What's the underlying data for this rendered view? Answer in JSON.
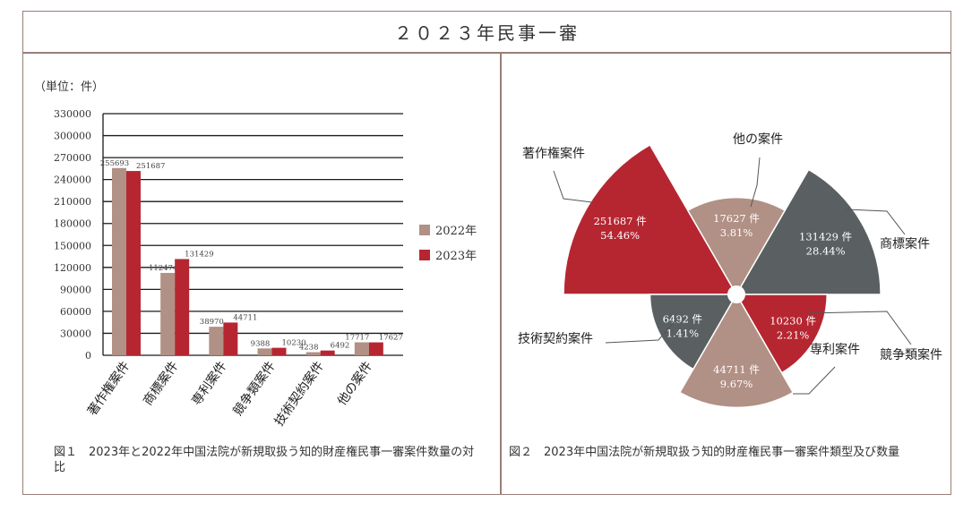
{
  "header": {
    "title": "２０２３年民事一審"
  },
  "chart_data": [
    {
      "type": "bar",
      "unit_label": "（単位：件）",
      "categories": [
        "著作権案件",
        "商標案件",
        "専利案件",
        "競争類案件",
        "技術契約案件",
        "他の案件"
      ],
      "series": [
        {
          "name": "2022年",
          "color": "#b19085",
          "values": [
            255693,
            112474,
            38970,
            9388,
            4238,
            17717
          ]
        },
        {
          "name": "2023年",
          "color": "#b62631",
          "values": [
            251687,
            131429,
            44711,
            10230,
            6492,
            17627
          ]
        }
      ],
      "ylim": [
        0,
        330000
      ],
      "yticks": [
        "0",
        "30000",
        "60000",
        "90000",
        "120000",
        "150000",
        "180000",
        "210000",
        "240000",
        "270000",
        "300000",
        "330000"
      ],
      "grid": true,
      "legend_position": "right",
      "caption": "図１　2023年と2022年中国法院が新規取扱う知的財産権民事一審案件数量の対比"
    },
    {
      "type": "pie",
      "subtype": "rose",
      "unit": "件",
      "slices": [
        {
          "label": "著作権案件",
          "value": 251687,
          "percent": "54.46%",
          "color": "#b62631"
        },
        {
          "label": "他の案件",
          "value": 17627,
          "percent": "3.81%",
          "color": "#b19085"
        },
        {
          "label": "商標案件",
          "value": 131429,
          "percent": "28.44%",
          "color": "#5a5f61"
        },
        {
          "label": "競争類案件",
          "value": 10230,
          "percent": "2.21%",
          "color": "#b62631"
        },
        {
          "label": "専利案件",
          "value": 44711,
          "percent": "9.67%",
          "color": "#b19085"
        },
        {
          "label": "技術契約案件",
          "value": 6492,
          "percent": "1.41%",
          "color": "#5a5f61"
        }
      ],
      "caption": "図２　2023年中国法院が新規取扱う知的財産権民事一審案件類型及び数量"
    }
  ]
}
